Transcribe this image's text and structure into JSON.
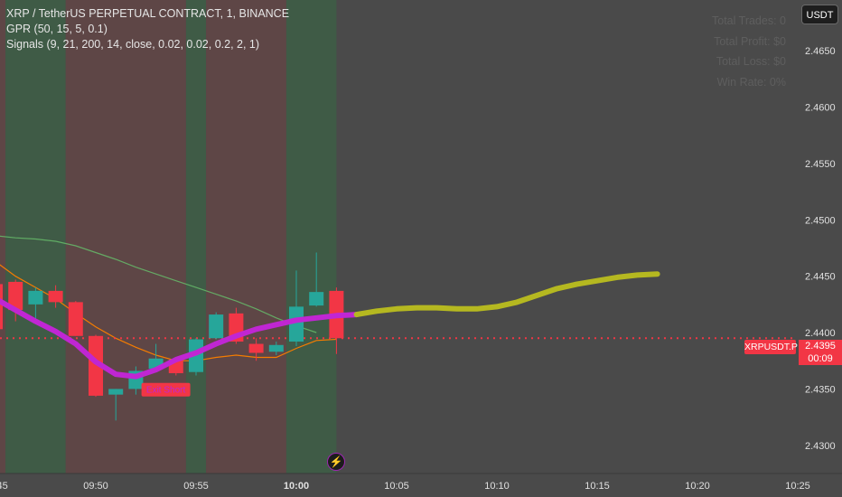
{
  "legend": {
    "title": "XRP / TetherUS PERPETUAL CONTRACT, 1, BINANCE",
    "indicator_1": "GPR (50, 15, 5, 0.1)",
    "indicator_2": "Signals (9, 21, 200, 14, close, 0.02, 0.02, 0.2, 2, 1)"
  },
  "stats": {
    "total_trades": "Total Trades: 0",
    "total_profit": "Total Profit: $0",
    "total_loss": "Total Loss: $0",
    "win_rate": "Win Rate: 0%"
  },
  "currency_button": "USDT",
  "symbol_tag": "XRPUSDT.P",
  "last_price": "2.4395",
  "countdown": "00:09",
  "signal_label": "Exit Short",
  "colors": {
    "background": "#4a4a4a",
    "bull": "#26a69a",
    "bear": "#f23645",
    "gpr_fit": "#c026d3",
    "gpr_forecast": "#b5b820",
    "ema_fast": "#f57c00",
    "ema_slow": "#66bb6a",
    "zone_green": "#3f5b46",
    "zone_red": "#5e4646"
  },
  "chart_data": {
    "type": "candlestick",
    "symbol": "XRP / TetherUS PERPETUAL CONTRACT",
    "interval": "1",
    "ylim": [
      2.4275,
      2.4695
    ],
    "y_ticks": [
      "2.4650",
      "2.4600",
      "2.4550",
      "2.4500",
      "2.4450",
      "2.4400",
      "2.4350",
      "2.4300"
    ],
    "x_ticks": [
      {
        "label": "09:45",
        "minute": -15
      },
      {
        "label": "09:50",
        "minute": -10
      },
      {
        "label": "09:55",
        "minute": -5
      },
      {
        "label": "10:00",
        "minute": 0
      },
      {
        "label": "10:05",
        "minute": 5
      },
      {
        "label": "10:10",
        "minute": 10
      },
      {
        "label": "10:15",
        "minute": 15
      },
      {
        "label": "10:20",
        "minute": 20
      },
      {
        "label": "10:25",
        "minute": 25
      }
    ],
    "candles": [
      {
        "minute": -15,
        "o": 2.4443,
        "h": 2.4455,
        "l": 2.4385,
        "c": 2.4403
      },
      {
        "minute": -14,
        "o": 2.4445,
        "h": 2.4447,
        "l": 2.441,
        "c": 2.442
      },
      {
        "minute": -13,
        "o": 2.4425,
        "h": 2.444,
        "l": 2.441,
        "c": 2.4437
      },
      {
        "minute": -12,
        "o": 2.4437,
        "h": 2.4442,
        "l": 2.4422,
        "c": 2.4427
      },
      {
        "minute": -11,
        "o": 2.4427,
        "h": 2.4428,
        "l": 2.4397,
        "c": 2.4397
      },
      {
        "minute": -10,
        "o": 2.4397,
        "h": 2.4398,
        "l": 2.4343,
        "c": 2.4344
      },
      {
        "minute": -9,
        "o": 2.4345,
        "h": 2.435,
        "l": 2.4322,
        "c": 2.435
      },
      {
        "minute": -8,
        "o": 2.435,
        "h": 2.437,
        "l": 2.4345,
        "c": 2.4366
      },
      {
        "minute": -7,
        "o": 2.4368,
        "h": 2.439,
        "l": 2.4366,
        "c": 2.4377
      },
      {
        "minute": -6,
        "o": 2.4376,
        "h": 2.4378,
        "l": 2.4362,
        "c": 2.4364
      },
      {
        "minute": -5,
        "o": 2.4365,
        "h": 2.4395,
        "l": 2.4362,
        "c": 2.4394
      },
      {
        "minute": -4,
        "o": 2.4395,
        "h": 2.4418,
        "l": 2.4394,
        "c": 2.4416
      },
      {
        "minute": -3,
        "o": 2.4417,
        "h": 2.4422,
        "l": 2.439,
        "c": 2.4392
      },
      {
        "minute": -2,
        "o": 2.439,
        "h": 2.4395,
        "l": 2.4375,
        "c": 2.4382
      },
      {
        "minute": -1,
        "o": 2.4383,
        "h": 2.4392,
        "l": 2.438,
        "c": 2.4389
      },
      {
        "minute": 0,
        "o": 2.4392,
        "h": 2.4455,
        "l": 2.4388,
        "c": 2.4423
      },
      {
        "minute": 1,
        "o": 2.4424,
        "h": 2.4471,
        "l": 2.4423,
        "c": 2.4436
      },
      {
        "minute": 2,
        "o": 2.4437,
        "h": 2.444,
        "l": 2.4381,
        "c": 2.4395
      }
    ],
    "zones": [
      {
        "from": -15.5,
        "to": -14.5,
        "kind": "red"
      },
      {
        "from": -14.5,
        "to": -11.5,
        "kind": "green"
      },
      {
        "from": -11.5,
        "to": -5.5,
        "kind": "red"
      },
      {
        "from": -5.5,
        "to": -4.5,
        "kind": "green"
      },
      {
        "from": -4.5,
        "to": -0.5,
        "kind": "red"
      },
      {
        "from": -0.5,
        "to": 2.0,
        "kind": "green"
      }
    ],
    "gpr_fit": [
      [
        -16,
        2.444
      ],
      [
        -15,
        2.443
      ],
      [
        -14,
        2.442
      ],
      [
        -13,
        2.441
      ],
      [
        -12,
        2.4401
      ],
      [
        -11,
        2.439
      ],
      [
        -10,
        2.4374
      ],
      [
        -9,
        2.4363
      ],
      [
        -8,
        2.4361
      ],
      [
        -7,
        2.4367
      ],
      [
        -6,
        2.4376
      ],
      [
        -5,
        2.4382
      ],
      [
        -4,
        2.439
      ],
      [
        -3,
        2.4397
      ],
      [
        -2,
        2.4403
      ],
      [
        -1,
        2.4407
      ],
      [
        0,
        2.4411
      ],
      [
        1,
        2.4413
      ],
      [
        2,
        2.4415
      ],
      [
        3,
        2.4416
      ]
    ],
    "gpr_forecast": [
      [
        3,
        2.4416
      ],
      [
        4,
        2.4419
      ],
      [
        5,
        2.4421
      ],
      [
        6,
        2.4422
      ],
      [
        7,
        2.4422
      ],
      [
        8,
        2.4421
      ],
      [
        9,
        2.4421
      ],
      [
        10,
        2.4423
      ],
      [
        11,
        2.4427
      ],
      [
        12,
        2.4433
      ],
      [
        13,
        2.4439
      ],
      [
        14,
        2.4443
      ],
      [
        15,
        2.4446
      ],
      [
        16,
        2.4449
      ],
      [
        17,
        2.4451
      ],
      [
        18,
        2.4452
      ]
    ],
    "ema_fast": [
      [
        -16,
        2.4478
      ],
      [
        -15,
        2.4463
      ],
      [
        -14,
        2.445
      ],
      [
        -13,
        2.444
      ],
      [
        -12,
        2.443
      ],
      [
        -11,
        2.4417
      ],
      [
        -10,
        2.4405
      ],
      [
        -9,
        2.4395
      ],
      [
        -8,
        2.4387
      ],
      [
        -7,
        2.438
      ],
      [
        -6,
        2.4375
      ],
      [
        -5,
        2.4375
      ],
      [
        -4,
        2.4378
      ],
      [
        -3,
        2.438
      ],
      [
        -2,
        2.4378
      ],
      [
        -1,
        2.4378
      ],
      [
        0,
        2.4386
      ],
      [
        1,
        2.4393
      ],
      [
        2,
        2.4394
      ]
    ],
    "ema_slow": [
      [
        -16,
        2.4489
      ],
      [
        -15,
        2.4486
      ],
      [
        -14,
        2.4484
      ],
      [
        -13,
        2.4483
      ],
      [
        -12,
        2.4481
      ],
      [
        -11,
        2.4477
      ],
      [
        -10,
        2.4471
      ],
      [
        -9,
        2.4465
      ],
      [
        -8,
        2.4458
      ],
      [
        -7,
        2.4452
      ],
      [
        -6,
        2.4446
      ],
      [
        -5,
        2.444
      ],
      [
        -4,
        2.4434
      ],
      [
        -3,
        2.4428
      ],
      [
        -2,
        2.4421
      ],
      [
        -1,
        2.4413
      ],
      [
        0,
        2.4406
      ],
      [
        1,
        2.44
      ]
    ],
    "signal": {
      "minute": -7,
      "price": 2.4357,
      "label": "Exit Short"
    },
    "last_price_line": 2.4395
  }
}
